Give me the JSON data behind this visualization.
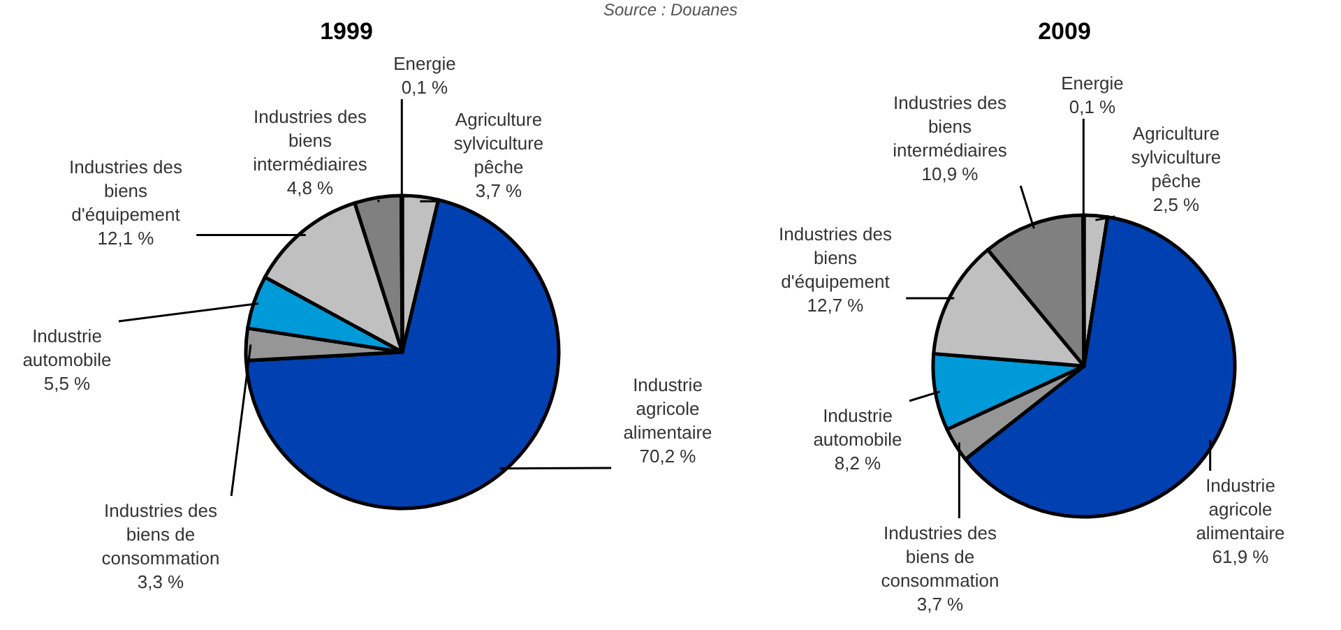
{
  "chart_data": [
    {
      "type": "pie",
      "title": "1999",
      "annotations": [
        "Source : Douanes"
      ],
      "categories": [
        "Agriculture sylviculture pêche",
        "Industrie agricole alimentaire",
        "Industries des biens de consommation",
        "Industrie automobile",
        "Industries des biens d'équipement",
        "Industries des biens intermédiaires",
        "Energie"
      ],
      "values": [
        3.7,
        70.2,
        3.3,
        5.5,
        12.1,
        4.8,
        0.1
      ],
      "value_labels": [
        "3,7 %",
        "70,2 %",
        "3,3 %",
        "5,5 %",
        "12,1 %",
        "4,8 %",
        "0,1 %"
      ],
      "colors": [
        "#c0c0c0",
        "#0040b0",
        "#969696",
        "#009ad8",
        "#c0c0c0",
        "#808080",
        "#000000"
      ]
    },
    {
      "type": "pie",
      "title": "2009",
      "categories": [
        "Agriculture sylviculture pêche",
        "Industrie agricole alimentaire",
        "Industries des biens de consommation",
        "Industrie automobile",
        "Industries des biens d'équipement",
        "Industries des biens intermédiaires",
        "Energie"
      ],
      "values": [
        2.5,
        61.9,
        3.7,
        8.2,
        12.7,
        10.9,
        0.1
      ],
      "value_labels": [
        "2,5 %",
        "61,9 %",
        "3,7 %",
        "8,2 %",
        "12,7 %",
        "10,9 %",
        "0,1 %"
      ],
      "colors": [
        "#c0c0c0",
        "#0040b0",
        "#969696",
        "#009ad8",
        "#c0c0c0",
        "#808080",
        "#000000"
      ]
    }
  ]
}
